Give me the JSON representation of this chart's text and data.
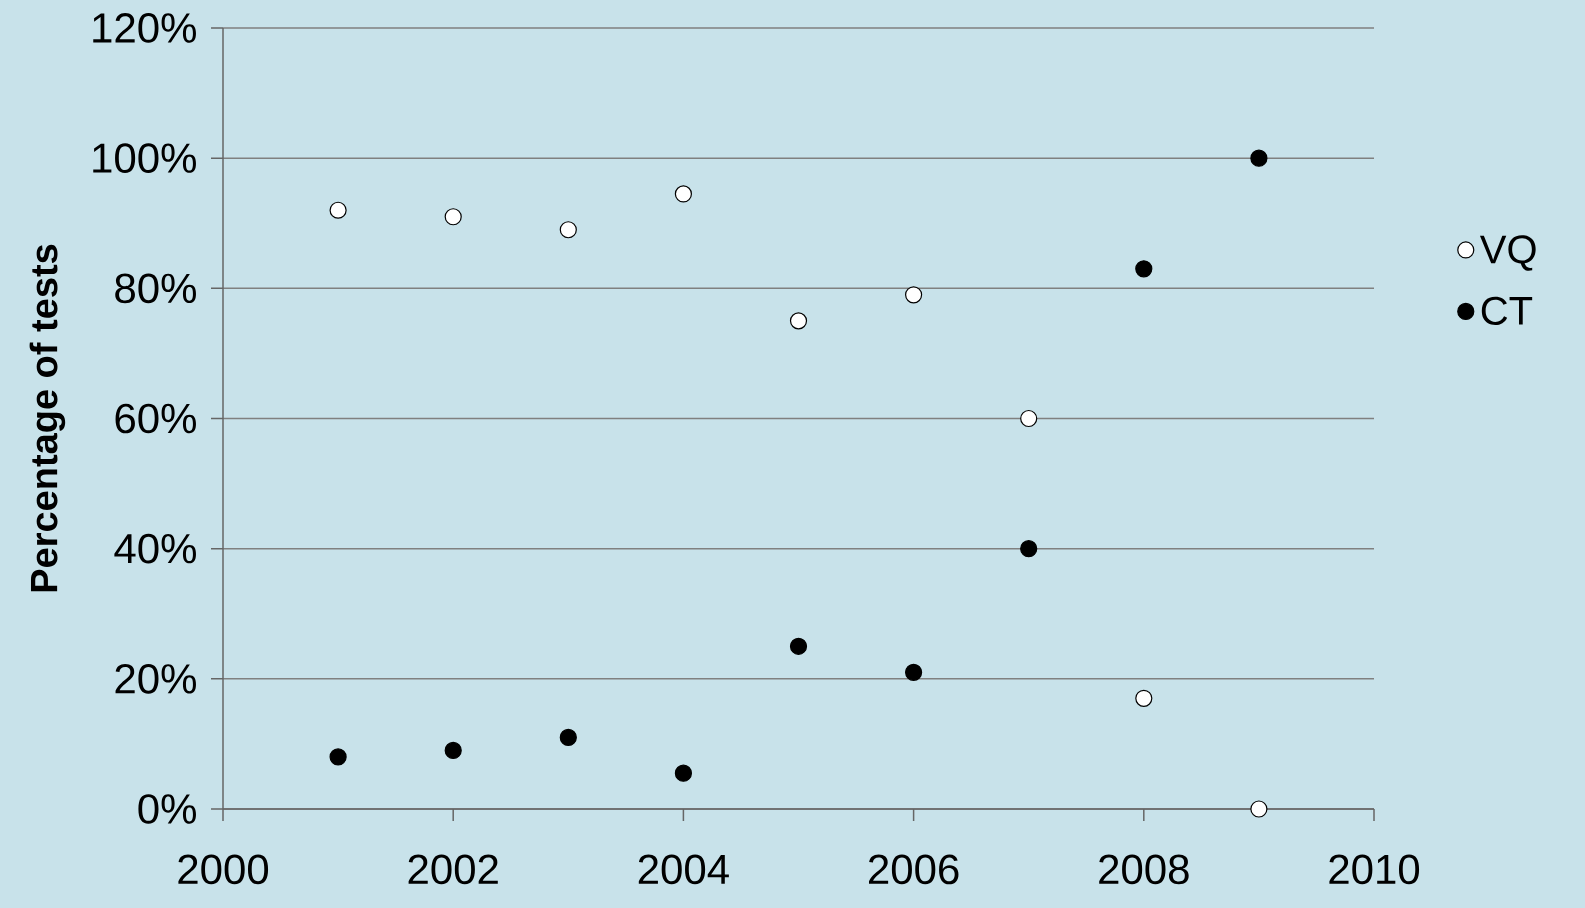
{
  "chart_data": {
    "type": "scatter",
    "ylabel": "Percentage of tests",
    "x": [
      2001,
      2002,
      2003,
      2004,
      2005,
      2006,
      2007,
      2008,
      2009
    ],
    "series": [
      {
        "name": "VQ",
        "color": "#ffffff",
        "values": [
          92,
          91,
          89,
          94.5,
          75,
          79,
          60,
          17,
          0
        ]
      },
      {
        "name": "CT",
        "color": "#000000",
        "values": [
          8,
          9,
          11,
          5.5,
          25,
          21,
          40,
          83,
          100
        ]
      }
    ],
    "xlim": [
      2000,
      2010
    ],
    "xticks": [
      2000,
      2002,
      2004,
      2006,
      2008,
      2010
    ],
    "ylim": [
      0,
      120
    ],
    "yticks": [
      {
        "value": 0,
        "label": "0%"
      },
      {
        "value": 20,
        "label": "20%"
      },
      {
        "value": 40,
        "label": "40%"
      },
      {
        "value": 60,
        "label": "60%"
      },
      {
        "value": 80,
        "label": "80%"
      },
      {
        "value": 100,
        "label": "100%"
      },
      {
        "value": 120,
        "label": "120%"
      }
    ],
    "grid": "y",
    "legend": "right"
  }
}
